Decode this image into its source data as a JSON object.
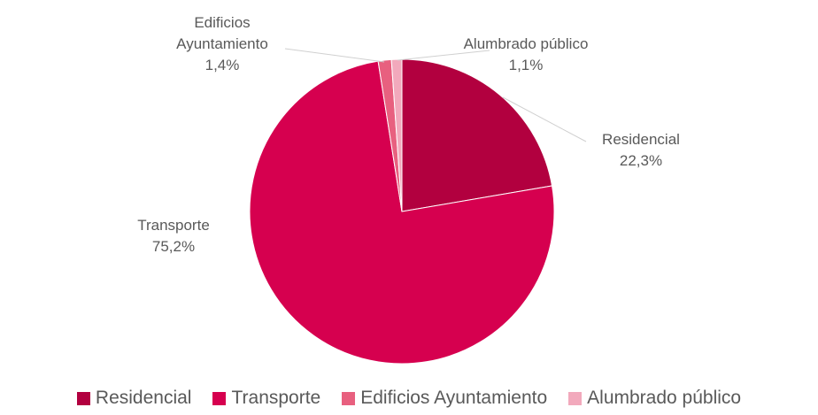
{
  "chart_data": {
    "type": "pie",
    "categories": [
      "Residencial",
      "Transporte",
      "Edificios Ayuntamiento",
      "Alumbrado público"
    ],
    "values": [
      22.3,
      75.2,
      1.4,
      1.1
    ],
    "value_labels": [
      "22,3%",
      "75,2%",
      "1,4%",
      "1,1%"
    ],
    "colors": [
      "#b2003f",
      "#d6004f",
      "#e8607f",
      "#f2a9bc"
    ],
    "legend": "bottom"
  }
}
